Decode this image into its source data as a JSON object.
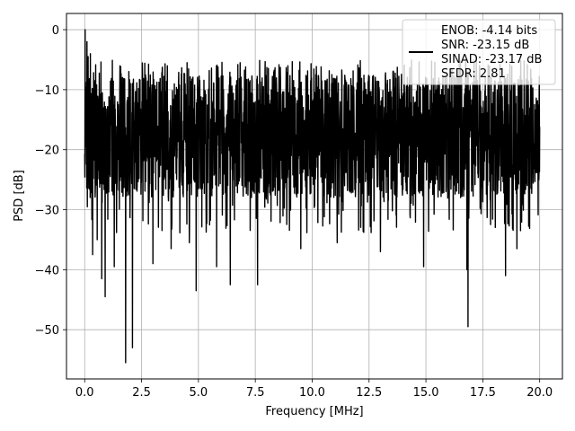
{
  "chart_data": {
    "type": "line",
    "title": "",
    "xlabel": "Frequency [MHz]",
    "ylabel": "PSD [dB]",
    "xlim": [
      -0.8,
      21.0
    ],
    "ylim": [
      -58.2,
      2.7
    ],
    "x_ticks": [
      0.0,
      2.5,
      5.0,
      7.5,
      10.0,
      12.5,
      15.0,
      17.5,
      20.0
    ],
    "x_tick_labels": [
      "0.0",
      "2.5",
      "5.0",
      "7.5",
      "10.0",
      "12.5",
      "15.0",
      "17.5",
      "20.0"
    ],
    "y_ticks": [
      0,
      -10,
      -20,
      -30,
      -40,
      -50
    ],
    "y_tick_labels": [
      "0",
      "−10",
      "−20",
      "−30",
      "−40",
      "−50"
    ],
    "grid": true,
    "legend_position": "top-right",
    "legend_lines": [
      "ENOB: -4.14 bits",
      "SNR: -23.15 dB",
      "SINAD: -23.17 dB",
      "SFDR: 2.81"
    ],
    "series": [
      {
        "color": "#000000",
        "x_start": 0.0,
        "x_end": 20.0,
        "band_center_db": -17.5,
        "band_upper_db": -7.5,
        "band_lower_db": -28.0,
        "peaks": [
          {
            "x": 0.02,
            "y": 0.0
          },
          {
            "x": 0.1,
            "y": -2.0
          },
          {
            "x": 0.15,
            "y": -4.5
          },
          {
            "x": 0.25,
            "y": -4.0
          }
        ],
        "dips": [
          {
            "x": 0.35,
            "y": -37.5
          },
          {
            "x": 0.55,
            "y": -35.0
          },
          {
            "x": 0.75,
            "y": -41.5
          },
          {
            "x": 0.9,
            "y": -44.5
          },
          {
            "x": 1.3,
            "y": -39.5
          },
          {
            "x": 1.8,
            "y": -55.5
          },
          {
            "x": 2.1,
            "y": -53.0
          },
          {
            "x": 3.0,
            "y": -39.0
          },
          {
            "x": 3.8,
            "y": -36.5
          },
          {
            "x": 4.6,
            "y": -35.5
          },
          {
            "x": 4.9,
            "y": -43.5
          },
          {
            "x": 5.8,
            "y": -39.5
          },
          {
            "x": 6.4,
            "y": -42.5
          },
          {
            "x": 7.6,
            "y": -42.5
          },
          {
            "x": 9.5,
            "y": -36.5
          },
          {
            "x": 11.1,
            "y": -35.5
          },
          {
            "x": 13.0,
            "y": -37.0
          },
          {
            "x": 14.9,
            "y": -39.5
          },
          {
            "x": 16.8,
            "y": -40.0
          },
          {
            "x": 16.85,
            "y": -49.5
          },
          {
            "x": 18.5,
            "y": -41.0
          },
          {
            "x": 19.0,
            "y": -36.5
          }
        ]
      }
    ]
  }
}
